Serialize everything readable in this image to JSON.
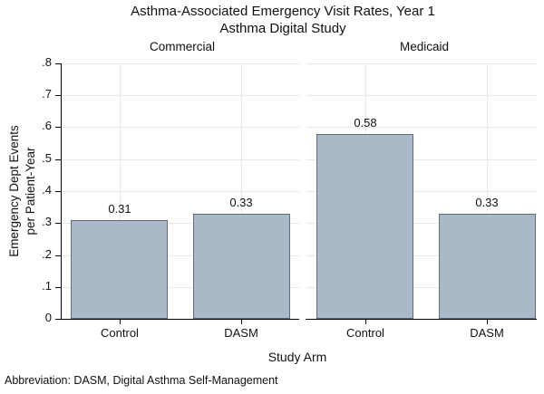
{
  "title": {
    "line1": "Asthma-Associated Emergency Visit Rates, Year 1",
    "line2": "Asthma Digital Study"
  },
  "axes": {
    "ylabel_line1": "Emergency Dept Events",
    "ylabel_line2": "per Patient-Year",
    "xlabel": "Study Arm",
    "ytick_labels": [
      "0",
      ".1",
      ".2",
      ".3",
      ".4",
      ".5",
      ".6",
      ".7",
      ".8"
    ]
  },
  "footnote": "Abbreviation: DASM, Digital Asthma Self-Management",
  "colors": {
    "bar_fill": "#aab8c7",
    "bar_border": "#5f6d7e",
    "gridline": "#e8e8e8",
    "axis": "#000000",
    "text": "#111111"
  },
  "chart_data": {
    "type": "bar",
    "title": "Asthma-Associated Emergency Visit Rates, Year 1",
    "subtitle": "Asthma Digital Study",
    "xlabel": "Study Arm",
    "ylabel": "Emergency Dept Events per Patient-Year",
    "ylim": [
      0,
      0.8
    ],
    "ytick_interval": 0.1,
    "grid": true,
    "legend": "none",
    "panels": [
      {
        "label": "Commercial",
        "categories": [
          "Control",
          "DASM"
        ],
        "values": [
          0.31,
          0.33
        ],
        "data_labels": [
          "0.31",
          "0.33"
        ]
      },
      {
        "label": "Medicaid",
        "categories": [
          "Control",
          "DASM"
        ],
        "values": [
          0.58,
          0.33
        ],
        "data_labels": [
          "0.58",
          "0.33"
        ]
      }
    ],
    "footnote": "Abbreviation: DASM, Digital Asthma Self-Management"
  }
}
